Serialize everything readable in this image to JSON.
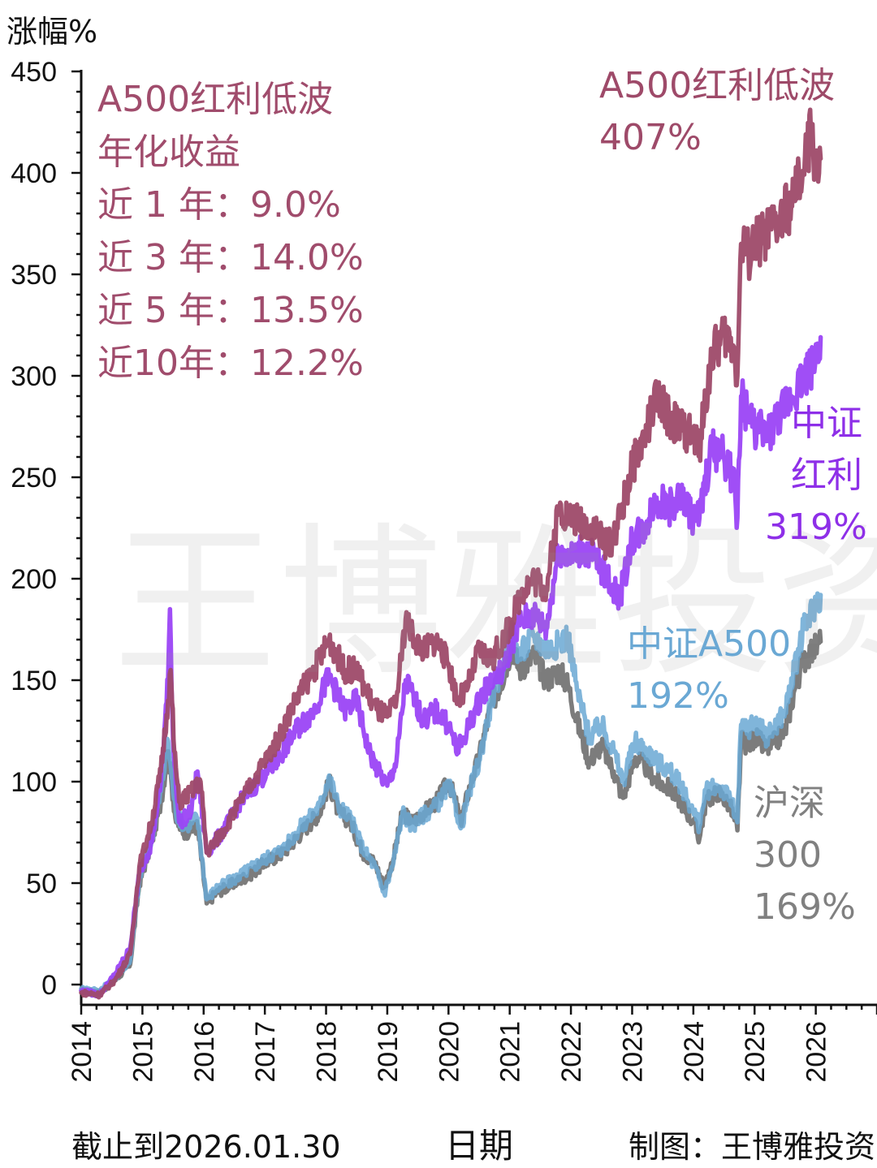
{
  "y_axis_label": "涨幅%",
  "watermark": "王博雅投资",
  "annotation": {
    "title_line1": "A500红利低波",
    "title_line2": "年化收益",
    "returns": [
      {
        "label": "近 1 年：9.0%"
      },
      {
        "label": "近 3 年：14.0%"
      },
      {
        "label": "近 5 年：13.5%"
      },
      {
        "label": "近10年：12.2%"
      }
    ]
  },
  "series_labels": {
    "a500_div": {
      "line1": "A500红利低波",
      "line2": "407%"
    },
    "csi_div": {
      "line1": "中证",
      "line2": "红利",
      "line3": "319%"
    },
    "csi_a500": {
      "line1": "中证A500",
      "line2": "192%"
    },
    "hs300": {
      "line1": "沪深",
      "line2": "300",
      "line3": "169%"
    }
  },
  "footer": {
    "date_note": "截止到2026.01.30",
    "xlabel": "日期",
    "credit": "制图：王博雅投资"
  },
  "colors": {
    "a500_div": "#9e4a69",
    "csi_div": "#9b45f5",
    "csi_a500": "#6aa8d4",
    "hs300": "#757575",
    "axis": "#111111"
  },
  "chart_data": {
    "type": "line",
    "title": "",
    "xlabel": "日期",
    "ylabel": "涨幅%",
    "xlim": [
      2014,
      2027
    ],
    "ylim": [
      -10,
      450
    ],
    "yticks": [
      0,
      50,
      100,
      150,
      200,
      250,
      300,
      350,
      400,
      450
    ],
    "xticks": [
      "2014",
      "2015",
      "2016",
      "2017",
      "2018",
      "2019",
      "2020",
      "2021",
      "2022",
      "2023",
      "2024",
      "2025",
      "2026"
    ],
    "grid": false,
    "series": [
      {
        "key": "hs300",
        "name": "沪深300",
        "final_value": 169,
        "points": [
          [
            2014.0,
            -3
          ],
          [
            2014.3,
            -4
          ],
          [
            2014.55,
            2
          ],
          [
            2014.8,
            10
          ],
          [
            2014.95,
            50
          ],
          [
            2015.15,
            70
          ],
          [
            2015.3,
            90
          ],
          [
            2015.42,
            115
          ],
          [
            2015.48,
            98
          ],
          [
            2015.55,
            80
          ],
          [
            2015.7,
            75
          ],
          [
            2015.9,
            78
          ],
          [
            2016.05,
            40
          ],
          [
            2016.2,
            45
          ],
          [
            2016.5,
            50
          ],
          [
            2016.8,
            55
          ],
          [
            2017.0,
            60
          ],
          [
            2017.3,
            65
          ],
          [
            2017.6,
            75
          ],
          [
            2017.9,
            85
          ],
          [
            2018.05,
            100
          ],
          [
            2018.2,
            85
          ],
          [
            2018.4,
            80
          ],
          [
            2018.6,
            65
          ],
          [
            2018.8,
            60
          ],
          [
            2018.95,
            48
          ],
          [
            2019.1,
            62
          ],
          [
            2019.25,
            85
          ],
          [
            2019.4,
            80
          ],
          [
            2019.6,
            85
          ],
          [
            2019.8,
            90
          ],
          [
            2020.0,
            100
          ],
          [
            2020.1,
            92
          ],
          [
            2020.2,
            80
          ],
          [
            2020.35,
            98
          ],
          [
            2020.5,
            112
          ],
          [
            2020.7,
            138
          ],
          [
            2020.85,
            148
          ],
          [
            2021.05,
            168
          ],
          [
            2021.15,
            155
          ],
          [
            2021.4,
            162
          ],
          [
            2021.6,
            150
          ],
          [
            2021.8,
            155
          ],
          [
            2021.95,
            148
          ],
          [
            2022.1,
            130
          ],
          [
            2022.3,
            110
          ],
          [
            2022.5,
            118
          ],
          [
            2022.7,
            105
          ],
          [
            2022.85,
            92
          ],
          [
            2023.05,
            112
          ],
          [
            2023.2,
            108
          ],
          [
            2023.4,
            100
          ],
          [
            2023.6,
            97
          ],
          [
            2023.8,
            90
          ],
          [
            2024.0,
            80
          ],
          [
            2024.1,
            72
          ],
          [
            2024.2,
            90
          ],
          [
            2024.4,
            95
          ],
          [
            2024.6,
            88
          ],
          [
            2024.72,
            76
          ],
          [
            2024.78,
            120
          ],
          [
            2024.9,
            118
          ],
          [
            2025.0,
            122
          ],
          [
            2025.2,
            116
          ],
          [
            2025.35,
            120
          ],
          [
            2025.5,
            125
          ],
          [
            2025.65,
            145
          ],
          [
            2025.8,
            160
          ],
          [
            2025.95,
            165
          ],
          [
            2026.08,
            169
          ]
        ]
      },
      {
        "key": "csi_a500",
        "name": "中证A500",
        "final_value": 192,
        "points": [
          [
            2014.0,
            -2
          ],
          [
            2014.3,
            -3
          ],
          [
            2014.55,
            3
          ],
          [
            2014.8,
            12
          ],
          [
            2014.95,
            52
          ],
          [
            2015.15,
            72
          ],
          [
            2015.3,
            95
          ],
          [
            2015.42,
            120
          ],
          [
            2015.48,
            102
          ],
          [
            2015.55,
            84
          ],
          [
            2015.7,
            78
          ],
          [
            2015.9,
            82
          ],
          [
            2016.05,
            42
          ],
          [
            2016.2,
            47
          ],
          [
            2016.5,
            52
          ],
          [
            2016.8,
            58
          ],
          [
            2017.0,
            62
          ],
          [
            2017.3,
            67
          ],
          [
            2017.6,
            78
          ],
          [
            2017.9,
            88
          ],
          [
            2018.05,
            103
          ],
          [
            2018.2,
            88
          ],
          [
            2018.4,
            82
          ],
          [
            2018.6,
            67
          ],
          [
            2018.8,
            58
          ],
          [
            2018.95,
            45
          ],
          [
            2019.1,
            60
          ],
          [
            2019.25,
            85
          ],
          [
            2019.4,
            78
          ],
          [
            2019.6,
            84
          ],
          [
            2019.8,
            88
          ],
          [
            2020.0,
            98
          ],
          [
            2020.1,
            90
          ],
          [
            2020.2,
            77
          ],
          [
            2020.35,
            96
          ],
          [
            2020.5,
            110
          ],
          [
            2020.7,
            140
          ],
          [
            2020.85,
            152
          ],
          [
            2021.05,
            175
          ],
          [
            2021.15,
            162
          ],
          [
            2021.4,
            172
          ],
          [
            2021.6,
            165
          ],
          [
            2021.8,
            168
          ],
          [
            2021.95,
            172
          ],
          [
            2022.1,
            145
          ],
          [
            2022.3,
            122
          ],
          [
            2022.5,
            128
          ],
          [
            2022.7,
            115
          ],
          [
            2022.85,
            100
          ],
          [
            2023.05,
            120
          ],
          [
            2023.2,
            116
          ],
          [
            2023.4,
            110
          ],
          [
            2023.6,
            106
          ],
          [
            2023.8,
            98
          ],
          [
            2024.0,
            85
          ],
          [
            2024.1,
            78
          ],
          [
            2024.2,
            95
          ],
          [
            2024.4,
            98
          ],
          [
            2024.6,
            92
          ],
          [
            2024.72,
            80
          ],
          [
            2024.78,
            128
          ],
          [
            2024.9,
            126
          ],
          [
            2025.0,
            130
          ],
          [
            2025.2,
            122
          ],
          [
            2025.35,
            128
          ],
          [
            2025.5,
            135
          ],
          [
            2025.65,
            155
          ],
          [
            2025.8,
            175
          ],
          [
            2025.95,
            185
          ],
          [
            2026.08,
            192
          ]
        ]
      },
      {
        "key": "csi_div",
        "name": "中证红利",
        "final_value": 319,
        "points": [
          [
            2014.0,
            -3
          ],
          [
            2014.3,
            -5
          ],
          [
            2014.55,
            5
          ],
          [
            2014.8,
            18
          ],
          [
            2014.95,
            55
          ],
          [
            2015.15,
            70
          ],
          [
            2015.3,
            100
          ],
          [
            2015.42,
            150
          ],
          [
            2015.45,
            185
          ],
          [
            2015.5,
            120
          ],
          [
            2015.6,
            80
          ],
          [
            2015.8,
            85
          ],
          [
            2015.9,
            105
          ],
          [
            2016.05,
            65
          ],
          [
            2016.3,
            75
          ],
          [
            2016.6,
            90
          ],
          [
            2016.9,
            100
          ],
          [
            2017.2,
            110
          ],
          [
            2017.5,
            125
          ],
          [
            2017.8,
            135
          ],
          [
            2018.05,
            152
          ],
          [
            2018.3,
            135
          ],
          [
            2018.5,
            140
          ],
          [
            2018.7,
            115
          ],
          [
            2018.85,
            105
          ],
          [
            2019.0,
            98
          ],
          [
            2019.15,
            110
          ],
          [
            2019.3,
            150
          ],
          [
            2019.45,
            140
          ],
          [
            2019.6,
            130
          ],
          [
            2019.8,
            135
          ],
          [
            2020.0,
            128
          ],
          [
            2020.15,
            115
          ],
          [
            2020.3,
            125
          ],
          [
            2020.5,
            140
          ],
          [
            2020.7,
            150
          ],
          [
            2020.9,
            155
          ],
          [
            2021.05,
            170
          ],
          [
            2021.2,
            180
          ],
          [
            2021.4,
            182
          ],
          [
            2021.6,
            175
          ],
          [
            2021.8,
            215
          ],
          [
            2022.0,
            210
          ],
          [
            2022.2,
            215
          ],
          [
            2022.4,
            210
          ],
          [
            2022.6,
            200
          ],
          [
            2022.8,
            190
          ],
          [
            2023.0,
            220
          ],
          [
            2023.2,
            225
          ],
          [
            2023.4,
            240
          ],
          [
            2023.6,
            235
          ],
          [
            2023.8,
            240
          ],
          [
            2024.0,
            230
          ],
          [
            2024.1,
            230
          ],
          [
            2024.3,
            265
          ],
          [
            2024.5,
            260
          ],
          [
            2024.65,
            250
          ],
          [
            2024.72,
            230
          ],
          [
            2024.78,
            290
          ],
          [
            2024.9,
            280
          ],
          [
            2025.0,
            275
          ],
          [
            2025.2,
            270
          ],
          [
            2025.4,
            280
          ],
          [
            2025.6,
            290
          ],
          [
            2025.8,
            300
          ],
          [
            2025.95,
            305
          ],
          [
            2026.08,
            319
          ]
        ]
      },
      {
        "key": "a500_div",
        "name": "A500红利低波",
        "final_value": 407,
        "points": [
          [
            2014.0,
            -4
          ],
          [
            2014.3,
            -5
          ],
          [
            2014.55,
            2
          ],
          [
            2014.8,
            15
          ],
          [
            2014.95,
            58
          ],
          [
            2015.15,
            80
          ],
          [
            2015.3,
            105
          ],
          [
            2015.42,
            140
          ],
          [
            2015.46,
            155
          ],
          [
            2015.52,
            115
          ],
          [
            2015.6,
            90
          ],
          [
            2015.8,
            95
          ],
          [
            2015.95,
            100
          ],
          [
            2016.05,
            65
          ],
          [
            2016.3,
            75
          ],
          [
            2016.6,
            90
          ],
          [
            2016.9,
            105
          ],
          [
            2017.2,
            120
          ],
          [
            2017.5,
            140
          ],
          [
            2017.8,
            155
          ],
          [
            2018.05,
            170
          ],
          [
            2018.3,
            155
          ],
          [
            2018.5,
            155
          ],
          [
            2018.7,
            142
          ],
          [
            2018.85,
            135
          ],
          [
            2019.0,
            132
          ],
          [
            2019.15,
            140
          ],
          [
            2019.3,
            180
          ],
          [
            2019.45,
            170
          ],
          [
            2019.6,
            165
          ],
          [
            2019.8,
            170
          ],
          [
            2020.0,
            158
          ],
          [
            2020.15,
            140
          ],
          [
            2020.3,
            145
          ],
          [
            2020.5,
            165
          ],
          [
            2020.7,
            160
          ],
          [
            2020.9,
            170
          ],
          [
            2021.05,
            180
          ],
          [
            2021.2,
            195
          ],
          [
            2021.4,
            200
          ],
          [
            2021.6,
            195
          ],
          [
            2021.8,
            235
          ],
          [
            2022.0,
            230
          ],
          [
            2022.2,
            228
          ],
          [
            2022.4,
            225
          ],
          [
            2022.6,
            215
          ],
          [
            2022.8,
            230
          ],
          [
            2023.0,
            255
          ],
          [
            2023.2,
            270
          ],
          [
            2023.4,
            290
          ],
          [
            2023.6,
            280
          ],
          [
            2023.8,
            275
          ],
          [
            2024.0,
            270
          ],
          [
            2024.1,
            265
          ],
          [
            2024.3,
            310
          ],
          [
            2024.5,
            320
          ],
          [
            2024.65,
            315
          ],
          [
            2024.72,
            300
          ],
          [
            2024.78,
            365
          ],
          [
            2024.9,
            360
          ],
          [
            2025.0,
            365
          ],
          [
            2025.2,
            370
          ],
          [
            2025.4,
            375
          ],
          [
            2025.6,
            385
          ],
          [
            2025.8,
            400
          ],
          [
            2025.92,
            420
          ],
          [
            2026.0,
            405
          ],
          [
            2026.08,
            407
          ]
        ]
      }
    ]
  }
}
